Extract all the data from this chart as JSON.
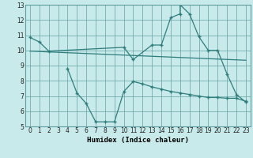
{
  "xlabel": "Humidex (Indice chaleur)",
  "bg_color": "#c8eaea",
  "grid_color": "#5f9ea0",
  "line_color": "#2e7d7d",
  "xlim": [
    -0.5,
    23.5
  ],
  "ylim": [
    5,
    13
  ],
  "yticks": [
    5,
    6,
    7,
    8,
    9,
    10,
    11,
    12,
    13
  ],
  "xticks": [
    0,
    1,
    2,
    3,
    4,
    5,
    6,
    7,
    8,
    9,
    10,
    11,
    12,
    13,
    14,
    15,
    16,
    17,
    18,
    19,
    20,
    21,
    22,
    23
  ],
  "line1_x": [
    0,
    1,
    2,
    10,
    11,
    13,
    14,
    15,
    16,
    16,
    17,
    18,
    19,
    20,
    21,
    22,
    23
  ],
  "line1_y": [
    10.85,
    10.55,
    9.95,
    10.2,
    9.4,
    10.35,
    10.35,
    12.15,
    12.4,
    13.0,
    12.4,
    10.9,
    10.0,
    10.0,
    8.45,
    7.1,
    6.6
  ],
  "line2_x": [
    0,
    23
  ],
  "line2_y": [
    9.95,
    9.35
  ],
  "line3_x": [
    4,
    5,
    6,
    7,
    8,
    9,
    10,
    11,
    12,
    13,
    14,
    15,
    16,
    17,
    18,
    19,
    20,
    21,
    22,
    23
  ],
  "line3_y": [
    8.8,
    7.2,
    6.5,
    5.3,
    5.3,
    5.3,
    7.3,
    7.95,
    7.8,
    7.6,
    7.45,
    7.3,
    7.2,
    7.1,
    7.0,
    6.9,
    6.9,
    6.85,
    6.85,
    6.65
  ]
}
